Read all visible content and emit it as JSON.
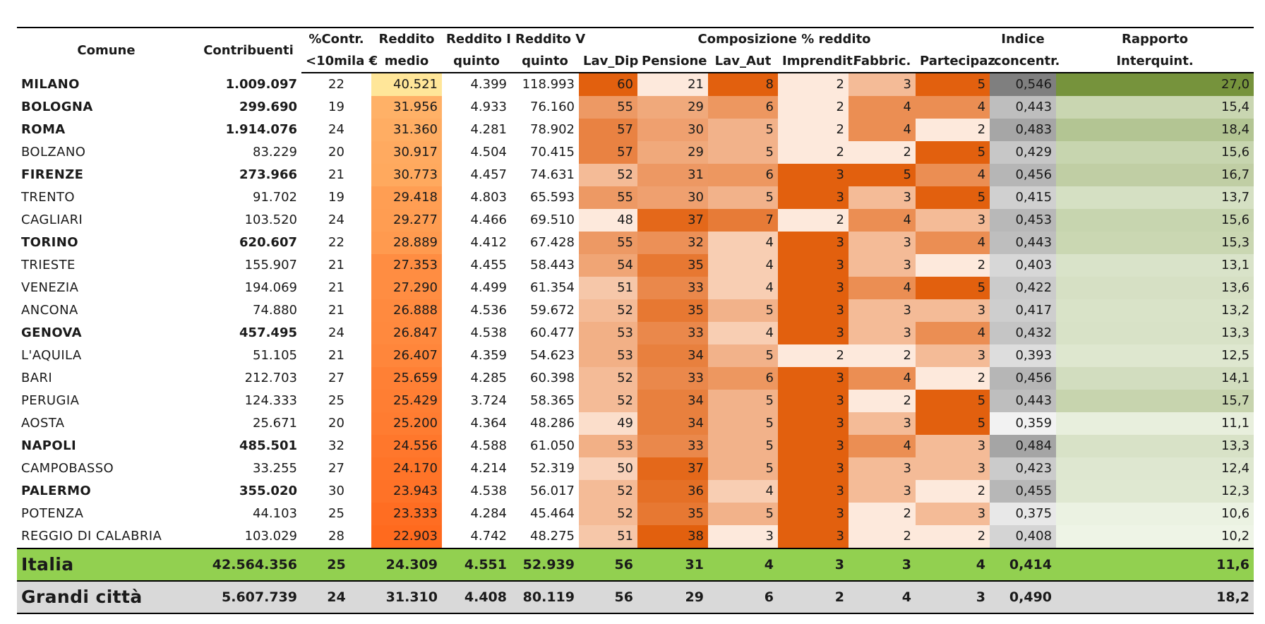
{
  "headers": {
    "comune": "Comune",
    "contribuenti": "Contribuenti",
    "pct_a": "%Contr.",
    "pct_b": "<10mila €",
    "medio_a": "Reddito",
    "medio_b": "medio",
    "q1_a": "Reddito I",
    "q1_b": "quinto",
    "q5_a": "Reddito V",
    "q5_b": "quinto",
    "composizione": "Composizione % reddito",
    "lav_dip": "Lav_Dip",
    "pensione": "Pensione",
    "lav_aut": "Lav_Aut",
    "imprendit": "Imprendit.",
    "fabbric": "Fabbric.",
    "partecipaz": "Partecipaz.",
    "indice_a": "Indice",
    "indice_b": "concentr.",
    "rapporto_a": "Rapporto",
    "rapporto_b": "Interquint."
  },
  "rows": [
    {
      "comune": "MILANO",
      "bold": true,
      "contribuenti": "1.009.097",
      "pct": "22",
      "medio": "40.521",
      "q1": "4.399",
      "q5": "118.993",
      "lav_dip": "60",
      "pensione": "21",
      "lav_aut": "8",
      "imprendit": "2",
      "fabbric": "3",
      "partecipaz": "5",
      "indice": "0,546",
      "rapporto": "27,0"
    },
    {
      "comune": "BOLOGNA",
      "bold": true,
      "contribuenti": "299.690",
      "pct": "19",
      "medio": "31.956",
      "q1": "4.933",
      "q5": "76.160",
      "lav_dip": "55",
      "pensione": "29",
      "lav_aut": "6",
      "imprendit": "2",
      "fabbric": "4",
      "partecipaz": "4",
      "indice": "0,443",
      "rapporto": "15,4"
    },
    {
      "comune": "ROMA",
      "bold": true,
      "contribuenti": "1.914.076",
      "pct": "24",
      "medio": "31.360",
      "q1": "4.281",
      "q5": "78.902",
      "lav_dip": "57",
      "pensione": "30",
      "lav_aut": "5",
      "imprendit": "2",
      "fabbric": "4",
      "partecipaz": "2",
      "indice": "0,483",
      "rapporto": "18,4"
    },
    {
      "comune": "BOLZANO",
      "bold": false,
      "contribuenti": "83.229",
      "pct": "20",
      "medio": "30.917",
      "q1": "4.504",
      "q5": "70.415",
      "lav_dip": "57",
      "pensione": "29",
      "lav_aut": "5",
      "imprendit": "2",
      "fabbric": "2",
      "partecipaz": "5",
      "indice": "0,429",
      "rapporto": "15,6"
    },
    {
      "comune": "FIRENZE",
      "bold": true,
      "contribuenti": "273.966",
      "pct": "21",
      "medio": "30.773",
      "q1": "4.457",
      "q5": "74.631",
      "lav_dip": "52",
      "pensione": "31",
      "lav_aut": "6",
      "imprendit": "3",
      "fabbric": "5",
      "partecipaz": "4",
      "indice": "0,456",
      "rapporto": "16,7"
    },
    {
      "comune": "TRENTO",
      "bold": false,
      "contribuenti": "91.702",
      "pct": "19",
      "medio": "29.418",
      "q1": "4.803",
      "q5": "65.593",
      "lav_dip": "55",
      "pensione": "30",
      "lav_aut": "5",
      "imprendit": "3",
      "fabbric": "3",
      "partecipaz": "5",
      "indice": "0,415",
      "rapporto": "13,7"
    },
    {
      "comune": "CAGLIARI",
      "bold": false,
      "contribuenti": "103.520",
      "pct": "24",
      "medio": "29.277",
      "q1": "4.466",
      "q5": "69.510",
      "lav_dip": "48",
      "pensione": "37",
      "lav_aut": "7",
      "imprendit": "2",
      "fabbric": "4",
      "partecipaz": "3",
      "indice": "0,453",
      "rapporto": "15,6"
    },
    {
      "comune": "TORINO",
      "bold": true,
      "contribuenti": "620.607",
      "pct": "22",
      "medio": "28.889",
      "q1": "4.412",
      "q5": "67.428",
      "lav_dip": "55",
      "pensione": "32",
      "lav_aut": "4",
      "imprendit": "3",
      "fabbric": "3",
      "partecipaz": "4",
      "indice": "0,443",
      "rapporto": "15,3"
    },
    {
      "comune": "TRIESTE",
      "bold": false,
      "contribuenti": "155.907",
      "pct": "21",
      "medio": "27.353",
      "q1": "4.455",
      "q5": "58.443",
      "lav_dip": "54",
      "pensione": "35",
      "lav_aut": "4",
      "imprendit": "3",
      "fabbric": "3",
      "partecipaz": "2",
      "indice": "0,403",
      "rapporto": "13,1"
    },
    {
      "comune": "VENEZIA",
      "bold": false,
      "contribuenti": "194.069",
      "pct": "21",
      "medio": "27.290",
      "q1": "4.499",
      "q5": "61.354",
      "lav_dip": "51",
      "pensione": "33",
      "lav_aut": "4",
      "imprendit": "3",
      "fabbric": "4",
      "partecipaz": "5",
      "indice": "0,422",
      "rapporto": "13,6"
    },
    {
      "comune": "ANCONA",
      "bold": false,
      "contribuenti": "74.880",
      "pct": "21",
      "medio": "26.888",
      "q1": "4.536",
      "q5": "59.672",
      "lav_dip": "52",
      "pensione": "35",
      "lav_aut": "5",
      "imprendit": "3",
      "fabbric": "3",
      "partecipaz": "3",
      "indice": "0,417",
      "rapporto": "13,2"
    },
    {
      "comune": "GENOVA",
      "bold": true,
      "contribuenti": "457.495",
      "pct": "24",
      "medio": "26.847",
      "q1": "4.538",
      "q5": "60.477",
      "lav_dip": "53",
      "pensione": "33",
      "lav_aut": "4",
      "imprendit": "3",
      "fabbric": "3",
      "partecipaz": "4",
      "indice": "0,432",
      "rapporto": "13,3"
    },
    {
      "comune": "L'AQUILA",
      "bold": false,
      "contribuenti": "51.105",
      "pct": "21",
      "medio": "26.407",
      "q1": "4.359",
      "q5": "54.623",
      "lav_dip": "53",
      "pensione": "34",
      "lav_aut": "5",
      "imprendit": "2",
      "fabbric": "2",
      "partecipaz": "3",
      "indice": "0,393",
      "rapporto": "12,5"
    },
    {
      "comune": "BARI",
      "bold": false,
      "contribuenti": "212.703",
      "pct": "27",
      "medio": "25.659",
      "q1": "4.285",
      "q5": "60.398",
      "lav_dip": "52",
      "pensione": "33",
      "lav_aut": "6",
      "imprendit": "3",
      "fabbric": "4",
      "partecipaz": "2",
      "indice": "0,456",
      "rapporto": "14,1"
    },
    {
      "comune": "PERUGIA",
      "bold": false,
      "contribuenti": "124.333",
      "pct": "25",
      "medio": "25.429",
      "q1": "3.724",
      "q5": "58.365",
      "lav_dip": "52",
      "pensione": "34",
      "lav_aut": "5",
      "imprendit": "3",
      "fabbric": "2",
      "partecipaz": "5",
      "indice": "0,443",
      "rapporto": "15,7"
    },
    {
      "comune": "AOSTA",
      "bold": false,
      "contribuenti": "25.671",
      "pct": "20",
      "medio": "25.200",
      "q1": "4.364",
      "q5": "48.286",
      "lav_dip": "49",
      "pensione": "34",
      "lav_aut": "5",
      "imprendit": "3",
      "fabbric": "3",
      "partecipaz": "5",
      "indice": "0,359",
      "rapporto": "11,1"
    },
    {
      "comune": "NAPOLI",
      "bold": true,
      "contribuenti": "485.501",
      "pct": "32",
      "medio": "24.556",
      "q1": "4.588",
      "q5": "61.050",
      "lav_dip": "53",
      "pensione": "33",
      "lav_aut": "5",
      "imprendit": "3",
      "fabbric": "4",
      "partecipaz": "3",
      "indice": "0,484",
      "rapporto": "13,3"
    },
    {
      "comune": "CAMPOBASSO",
      "bold": false,
      "contribuenti": "33.255",
      "pct": "27",
      "medio": "24.170",
      "q1": "4.214",
      "q5": "52.319",
      "lav_dip": "50",
      "pensione": "37",
      "lav_aut": "5",
      "imprendit": "3",
      "fabbric": "3",
      "partecipaz": "3",
      "indice": "0,423",
      "rapporto": "12,4"
    },
    {
      "comune": "PALERMO",
      "bold": true,
      "contribuenti": "355.020",
      "pct": "30",
      "medio": "23.943",
      "q1": "4.538",
      "q5": "56.017",
      "lav_dip": "52",
      "pensione": "36",
      "lav_aut": "4",
      "imprendit": "3",
      "fabbric": "3",
      "partecipaz": "2",
      "indice": "0,455",
      "rapporto": "12,3"
    },
    {
      "comune": "POTENZA",
      "bold": false,
      "contribuenti": "44.103",
      "pct": "25",
      "medio": "23.333",
      "q1": "4.284",
      "q5": "45.464",
      "lav_dip": "52",
      "pensione": "35",
      "lav_aut": "5",
      "imprendit": "3",
      "fabbric": "2",
      "partecipaz": "3",
      "indice": "0,375",
      "rapporto": "10,6"
    },
    {
      "comune": "REGGIO DI CALABRIA",
      "bold": false,
      "contribuenti": "103.029",
      "pct": "28",
      "medio": "22.903",
      "q1": "4.742",
      "q5": "48.275",
      "lav_dip": "51",
      "pensione": "38",
      "lav_aut": "3",
      "imprendit": "3",
      "fabbric": "2",
      "partecipaz": "2",
      "indice": "0,408",
      "rapporto": "10,2"
    }
  ],
  "summary": [
    {
      "comune": "Italia",
      "key": "italia",
      "contribuenti": "42.564.356",
      "pct": "25",
      "medio": "24.309",
      "q1": "4.551",
      "q5": "52.939",
      "lav_dip": "56",
      "pensione": "31",
      "lav_aut": "4",
      "imprendit": "3",
      "fabbric": "3",
      "partecipaz": "4",
      "indice": "0,414",
      "rapporto": "11,6"
    },
    {
      "comune": "Grandi città",
      "key": "grandi",
      "contribuenti": "5.607.739",
      "pct": "24",
      "medio": "31.310",
      "q1": "4.408",
      "q5": "80.119",
      "lav_dip": "56",
      "pensione": "29",
      "lav_aut": "6",
      "imprendit": "2",
      "fabbric": "4",
      "partecipaz": "3",
      "indice": "0,490",
      "rapporto": "18,2"
    }
  ],
  "colors": {
    "medio_low": "#ff6a1e",
    "medio_mid": "#ffb066",
    "medio_high": "#ffe699",
    "orange_low": "#fde9dc",
    "orange_high": "#e2600e",
    "gray_low": "#f2f2f2",
    "gray_high": "#7f7f7f",
    "green_low": "#eef4e6",
    "green_high": "#76933c",
    "italia_bg": "#92d050",
    "grandi_bg": "#d9d9d9"
  }
}
